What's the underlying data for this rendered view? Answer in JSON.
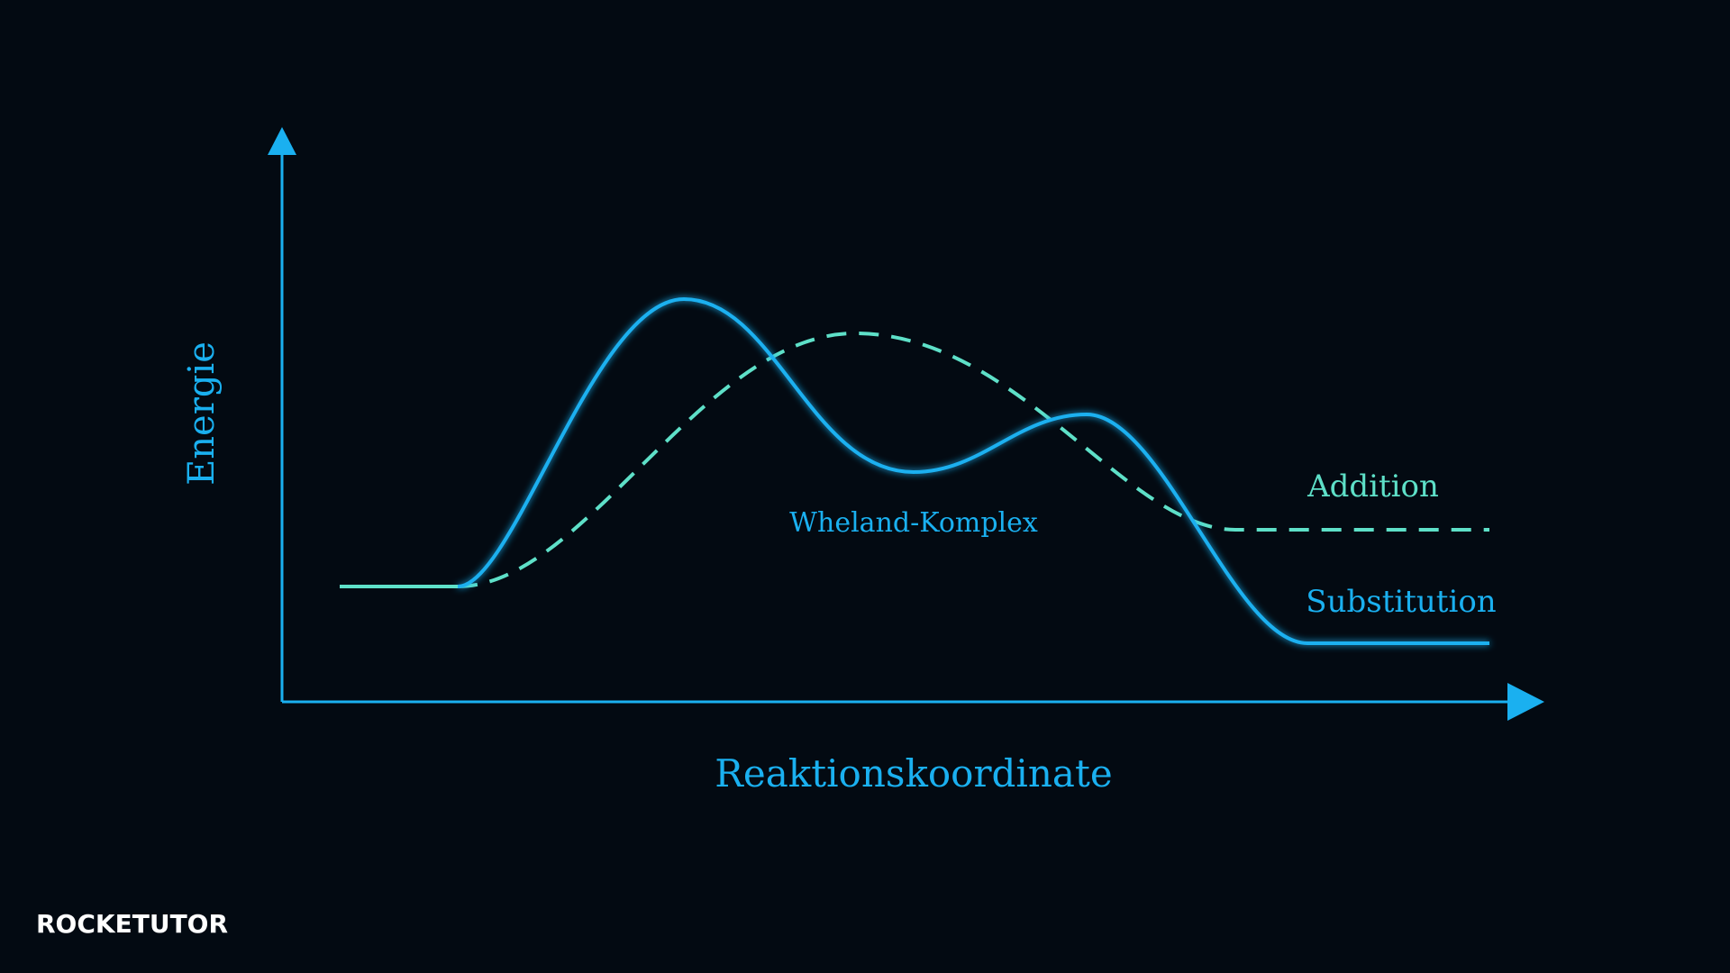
{
  "axes": {
    "y_label": "Energie",
    "x_label": "Reaktionskoordinate"
  },
  "curves": {
    "addition": "Addition",
    "substitution": "Substitution"
  },
  "annotation": "Wheland-Komplex",
  "brand": "ROCKETUTOR"
}
